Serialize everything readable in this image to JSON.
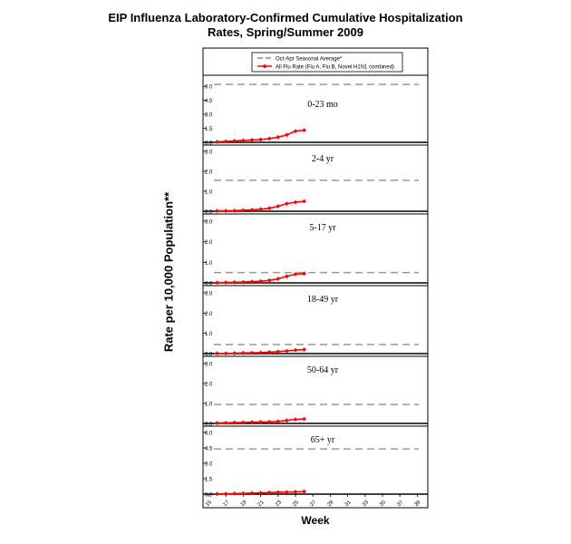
{
  "title": {
    "line1": "EIP Influenza Laboratory-Confirmed Cumulative Hospitalization",
    "line2": "Rates, Spring/Summer 2009"
  },
  "ylabel": "Rate per 10,000 Population**",
  "xlabel": "Week",
  "legend": {
    "seasonal_label": "Oct-Apr Seasonal Average*",
    "flu_label": "All Flu Rate (Flu A, Flu B, Novel H1N1 combined)"
  },
  "colors": {
    "flu": "#ff0000",
    "seasonal": "#999999",
    "axis": "#000000"
  },
  "chart_data": {
    "type": "line",
    "x_ticks": [
      "15",
      "17",
      "19",
      "21",
      "23",
      "25",
      "27",
      "29",
      "31",
      "33",
      "35",
      "37",
      "39"
    ],
    "xlim": [
      15,
      40
    ],
    "panels": [
      {
        "label": "0-23 mo",
        "ylim": [
          0,
          6.5
        ],
        "y_ticks": [
          "0.0",
          "1.5",
          "3.0",
          "4.5",
          "6.0"
        ],
        "seasonal_average": 6.2,
        "x": [
          16,
          17,
          18,
          19,
          20,
          21,
          22,
          23,
          24,
          25,
          26
        ],
        "flu_rate": [
          0.05,
          0.1,
          0.15,
          0.2,
          0.25,
          0.3,
          0.4,
          0.55,
          0.8,
          1.2,
          1.3
        ]
      },
      {
        "label": "2-4 yr",
        "ylim": [
          0,
          3.0
        ],
        "y_ticks": [
          "0.0",
          "1.0",
          "2.0",
          "3.0"
        ],
        "seasonal_average": 1.55,
        "x": [
          16,
          17,
          18,
          19,
          20,
          21,
          22,
          23,
          24,
          25,
          26
        ],
        "flu_rate": [
          0.02,
          0.02,
          0.03,
          0.05,
          0.07,
          0.1,
          0.15,
          0.25,
          0.38,
          0.45,
          0.5
        ]
      },
      {
        "label": "5-17 yr",
        "ylim": [
          0,
          3.0
        ],
        "y_ticks": [
          "0.0",
          "1.0",
          "2.0",
          "3.0"
        ],
        "seasonal_average": 0.5,
        "x": [
          16,
          17,
          18,
          19,
          20,
          21,
          22,
          23,
          24,
          25,
          26
        ],
        "flu_rate": [
          0.01,
          0.02,
          0.03,
          0.04,
          0.06,
          0.08,
          0.12,
          0.2,
          0.32,
          0.42,
          0.45
        ]
      },
      {
        "label": "18-49 yr",
        "ylim": [
          0,
          3.0
        ],
        "y_ticks": [
          "0.0",
          "1.0",
          "2.0",
          "3.0"
        ],
        "seasonal_average": 0.45,
        "x": [
          16,
          17,
          18,
          19,
          20,
          21,
          22,
          23,
          24,
          25,
          26
        ],
        "flu_rate": [
          0.01,
          0.01,
          0.02,
          0.03,
          0.04,
          0.05,
          0.07,
          0.1,
          0.13,
          0.17,
          0.2
        ]
      },
      {
        "label": "50-64 yr",
        "ylim": [
          0,
          3.0
        ],
        "y_ticks": [
          "0.0",
          "1.0",
          "2.0",
          "3.0"
        ],
        "seasonal_average": 0.95,
        "x": [
          16,
          17,
          18,
          19,
          20,
          21,
          22,
          23,
          24,
          25,
          26
        ],
        "flu_rate": [
          0.02,
          0.03,
          0.04,
          0.05,
          0.06,
          0.07,
          0.08,
          0.1,
          0.15,
          0.2,
          0.22
        ]
      },
      {
        "label": "65+ yr",
        "ylim": [
          0,
          6.0
        ],
        "y_ticks": [
          "0.0",
          "1.5",
          "3.0",
          "4.5",
          "6.0"
        ],
        "seasonal_average": 4.4,
        "x": [
          16,
          17,
          18,
          19,
          20,
          21,
          22,
          23,
          24,
          25,
          26
        ],
        "flu_rate": [
          0.02,
          0.03,
          0.05,
          0.07,
          0.1,
          0.12,
          0.15,
          0.18,
          0.2,
          0.22,
          0.25
        ]
      }
    ]
  }
}
